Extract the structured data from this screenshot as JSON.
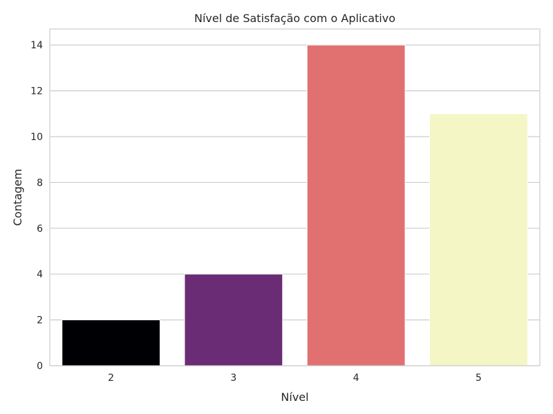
{
  "chart_data": {
    "type": "bar",
    "title": "Nível de Satisfação com o Aplicativo",
    "xlabel": "Nível",
    "ylabel": "Contagem",
    "categories": [
      "2",
      "3",
      "4",
      "5"
    ],
    "values": [
      2,
      4,
      14,
      11
    ],
    "colors": [
      "#000004",
      "#6a2c74",
      "#e07170",
      "#f4f6c5"
    ],
    "ylim": [
      0,
      14.7
    ],
    "yticks": [
      0,
      2,
      4,
      6,
      8,
      10,
      12,
      14
    ],
    "grid": true,
    "legend": "none"
  }
}
